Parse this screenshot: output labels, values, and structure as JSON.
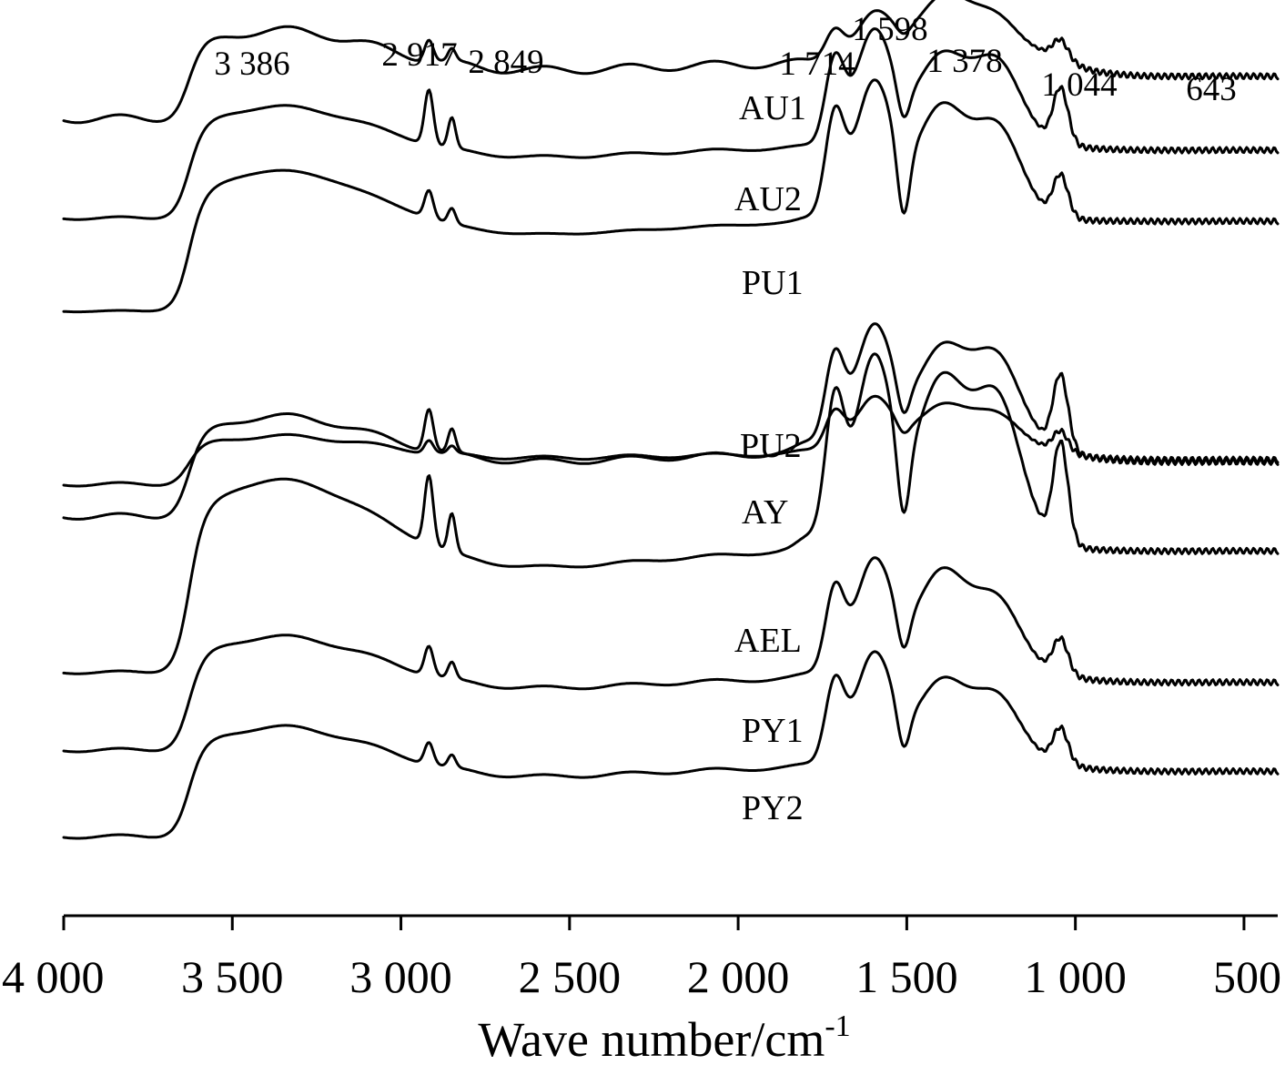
{
  "chart_data": {
    "type": "line",
    "title": "",
    "xlabel": "Wave number/cm",
    "xlabel_superscript": "-1",
    "ylabel": "",
    "xlim": [
      4000,
      400
    ],
    "x_reversed": true,
    "grid": false,
    "stacked_offset": true,
    "x_ticks": [
      {
        "value": 4000,
        "label": "4 000"
      },
      {
        "value": 3500,
        "label": "3 500"
      },
      {
        "value": 3000,
        "label": "3 000"
      },
      {
        "value": 2500,
        "label": "2 500"
      },
      {
        "value": 2000,
        "label": "2 000"
      },
      {
        "value": 1500,
        "label": "1 500"
      },
      {
        "value": 1000,
        "label": "1 000"
      },
      {
        "value": 500,
        "label": "500"
      }
    ],
    "peak_annotations": [
      {
        "label": "3 386"
      },
      {
        "label": "2 917"
      },
      {
        "label": "2 849"
      },
      {
        "label": "1 714"
      },
      {
        "label": "1 598"
      },
      {
        "label": "1 378"
      },
      {
        "label": "1 044"
      },
      {
        "label": "643"
      }
    ],
    "series": [
      {
        "name": "AU1",
        "baseline": 0.86,
        "plateau": 0.46,
        "ch": 0.12,
        "tail": 0.0,
        "carbonyl": 0.25,
        "dip": 0.04,
        "band1400": 0.36,
        "band1200": 0.25,
        "band1044": 0.1,
        "fingerprint": 0.11
      },
      {
        "name": "AU2",
        "baseline": 0.27,
        "plateau": 0.58,
        "ch": 0.3,
        "tail": 0.05,
        "carbonyl": 0.62,
        "dip": 0.18,
        "band1400": 0.49,
        "band1200": 0.45,
        "band1044": 0.3,
        "fingerprint": 0.04
      },
      {
        "name": "PU1",
        "baseline": 0.02,
        "plateau": 0.73,
        "ch": 0.15,
        "tail": 0.15,
        "carbonyl": 0.74,
        "dip": 0.38,
        "band1400": 0.61,
        "band1200": 0.49,
        "band1044": 0.23,
        "fingerprint": 0.02
      },
      {
        "name": "PU2",
        "baseline": 0.0,
        "plateau": 0.25,
        "ch": 0.07,
        "tail": 0.09,
        "carbonyl": 0.29,
        "dip": 0.06,
        "band1400": 0.26,
        "band1200": 0.21,
        "band1044": 0.11,
        "fingerprint": 0.05
      },
      {
        "name": "AY",
        "baseline": 0.0,
        "plateau": 0.52,
        "ch": 0.23,
        "tail": 0.31,
        "carbonyl": 0.65,
        "dip": 0.17,
        "band1400": 0.56,
        "band1200": 0.51,
        "band1044": 0.4,
        "fingerprint": 0.08
      },
      {
        "name": "AEL",
        "baseline": 0.02,
        "plateau": 1.0,
        "ch": 0.38,
        "tail": 0.45,
        "carbonyl": 1.0,
        "dip": 0.41,
        "band1400": 0.9,
        "band1200": 0.79,
        "band1044": 0.55,
        "fingerprint": 0.04
      },
      {
        "name": "PY1",
        "baseline": 0.24,
        "plateau": 0.59,
        "ch": 0.16,
        "tail": 0.12,
        "carbonyl": 0.62,
        "dip": 0.21,
        "band1400": 0.57,
        "band1200": 0.41,
        "band1044": 0.19,
        "fingerprint": 0.05
      },
      {
        "name": "PY2",
        "baseline": 0.0,
        "plateau": 0.57,
        "ch": 0.12,
        "tail": 0.07,
        "carbonyl": 0.6,
        "dip": 0.22,
        "band1400": 0.46,
        "band1200": 0.37,
        "band1044": 0.19,
        "fingerprint": 0.05
      }
    ]
  }
}
